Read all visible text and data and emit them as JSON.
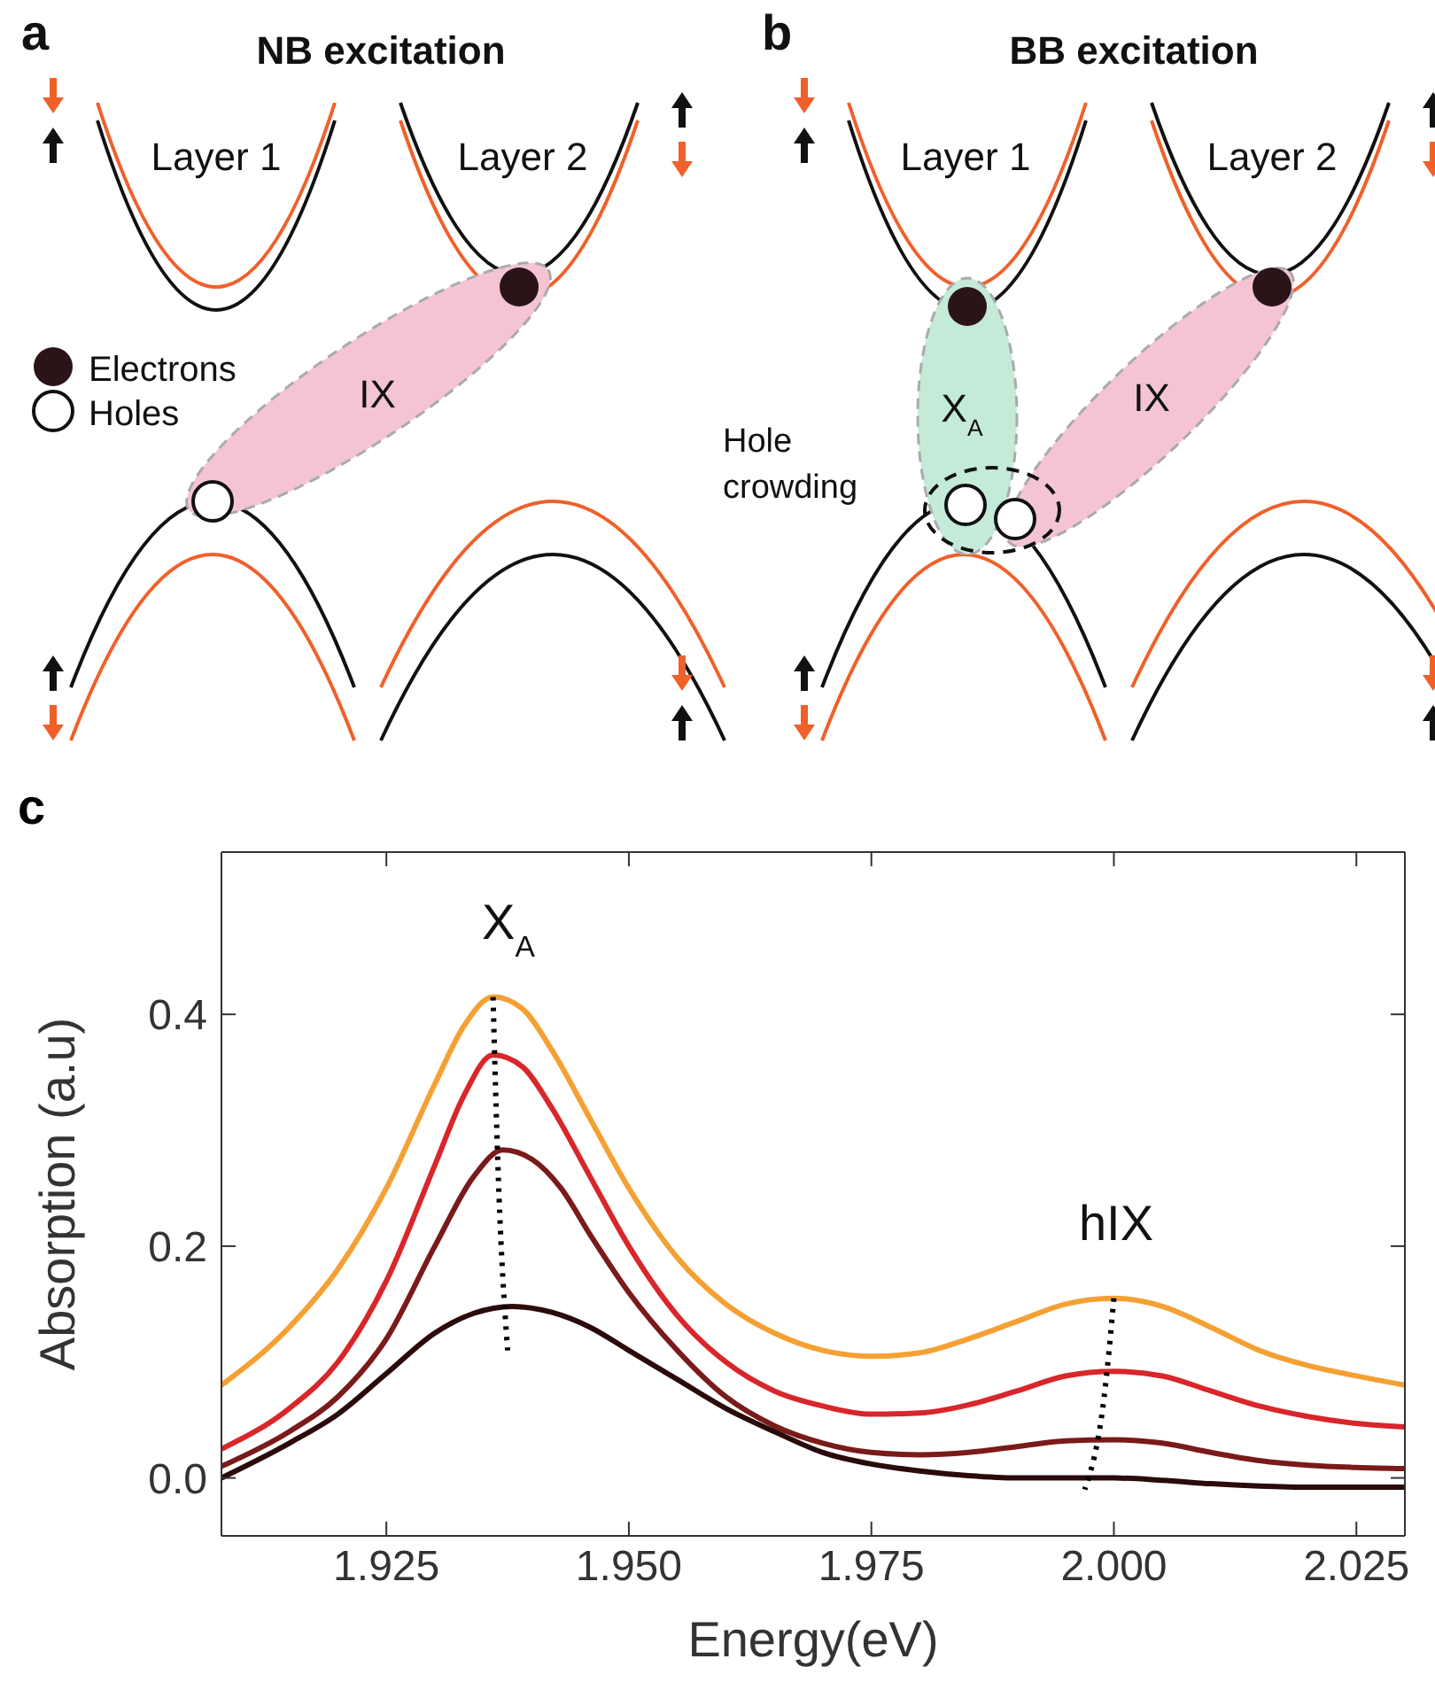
{
  "chart_data": [
    {
      "type": "other",
      "title": "NB excitation",
      "annotations": [
        "a",
        "Layer 1",
        "Layer 2",
        "Electrons",
        "Holes",
        "IX"
      ]
    },
    {
      "type": "other",
      "title": "BB excitation",
      "annotations": [
        "b",
        "Layer 1",
        "Layer 2",
        "X$_{A}$",
        "IX",
        "Hole crowding"
      ]
    },
    {
      "type": "line",
      "xlabel": "Energy(eV)",
      "ylabel": "Absorption (a.u)",
      "xlim": [
        1.908,
        2.03
      ],
      "xticks": [
        {
          "value": 1.925,
          "label": "1.925"
        },
        {
          "value": 1.95,
          "label": "1.950"
        },
        {
          "value": 1.975,
          "label": "1.975"
        },
        {
          "value": 2.0,
          "label": "2.000"
        },
        {
          "value": 2.025,
          "label": "2.025"
        }
      ],
      "ylim": [
        -0.05,
        0.54
      ],
      "yticks": [
        {
          "value": 0,
          "label": "0.0"
        },
        {
          "value": 0.2,
          "label": "0.2"
        },
        {
          "value": 0.4,
          "label": "0.4"
        }
      ],
      "annotations": [
        "c",
        "X$_{A}$",
        "hIX"
      ],
      "series": [
        {
          "color": "#f5a033",
          "x": [
            1.908,
            1.915,
            1.92,
            1.925,
            1.93,
            1.933,
            1.936,
            1.939,
            1.942,
            1.946,
            1.95,
            1.955,
            1.96,
            1.965,
            1.97,
            1.975,
            1.98,
            1.985,
            1.99,
            1.995,
            2.0,
            2.005,
            2.01,
            2.015,
            2.02,
            2.025,
            2.03
          ],
          "values": [
            0.08,
            0.13,
            0.18,
            0.25,
            0.34,
            0.39,
            0.415,
            0.405,
            0.37,
            0.31,
            0.25,
            0.19,
            0.15,
            0.125,
            0.11,
            0.105,
            0.108,
            0.12,
            0.135,
            0.15,
            0.155,
            0.148,
            0.13,
            0.11,
            0.097,
            0.088,
            0.08
          ]
        },
        {
          "color": "#d9262a",
          "x": [
            1.908,
            1.915,
            1.92,
            1.925,
            1.93,
            1.933,
            1.936,
            1.939,
            1.942,
            1.946,
            1.95,
            1.955,
            1.96,
            1.965,
            1.97,
            1.975,
            1.98,
            1.985,
            1.99,
            1.995,
            2.0,
            2.005,
            2.01,
            2.015,
            2.02,
            2.025,
            2.03
          ],
          "values": [
            0.025,
            0.06,
            0.1,
            0.17,
            0.27,
            0.33,
            0.365,
            0.355,
            0.32,
            0.26,
            0.2,
            0.14,
            0.1,
            0.075,
            0.062,
            0.055,
            0.056,
            0.063,
            0.075,
            0.088,
            0.092,
            0.088,
            0.075,
            0.062,
            0.053,
            0.047,
            0.044
          ]
        },
        {
          "color": "#7a1a1a",
          "x": [
            1.908,
            1.915,
            1.92,
            1.925,
            1.93,
            1.934,
            1.937,
            1.94,
            1.943,
            1.946,
            1.95,
            1.955,
            1.96,
            1.965,
            1.97,
            1.975,
            1.98,
            1.985,
            1.99,
            1.995,
            2.0,
            2.005,
            2.01,
            2.015,
            2.02,
            2.025,
            2.03
          ],
          "values": [
            0.01,
            0.04,
            0.07,
            0.12,
            0.2,
            0.26,
            0.283,
            0.275,
            0.25,
            0.21,
            0.16,
            0.11,
            0.07,
            0.045,
            0.03,
            0.022,
            0.02,
            0.022,
            0.027,
            0.032,
            0.033,
            0.03,
            0.022,
            0.015,
            0.011,
            0.009,
            0.008
          ]
        },
        {
          "color": "#2a0a0a",
          "x": [
            1.908,
            1.915,
            1.92,
            1.925,
            1.93,
            1.934,
            1.938,
            1.942,
            1.946,
            1.95,
            1.955,
            1.96,
            1.965,
            1.97,
            1.975,
            1.98,
            1.985,
            1.99,
            1.995,
            2.0,
            2.005,
            2.01,
            2.015,
            2.02,
            2.025,
            2.03
          ],
          "values": [
            0.0,
            0.03,
            0.055,
            0.09,
            0.125,
            0.142,
            0.148,
            0.143,
            0.13,
            0.11,
            0.085,
            0.06,
            0.04,
            0.022,
            0.012,
            0.006,
            0.002,
            0.0,
            0.0,
            0.0,
            -0.002,
            -0.005,
            -0.007,
            -0.008,
            -0.008,
            -0.008
          ]
        },
        {
          "type": "line",
          "line_style": "dotted",
          "color": "#000000",
          "x": [
            1.936,
            1.9365,
            1.9375
          ],
          "values": [
            0.415,
            0.27,
            0.11
          ]
        },
        {
          "type": "line",
          "line_style": "dotted",
          "color": "#000000",
          "x": [
            2.0,
            1.999,
            1.997
          ],
          "values": [
            0.155,
            0.07,
            -0.01
          ]
        }
      ]
    }
  ]
}
